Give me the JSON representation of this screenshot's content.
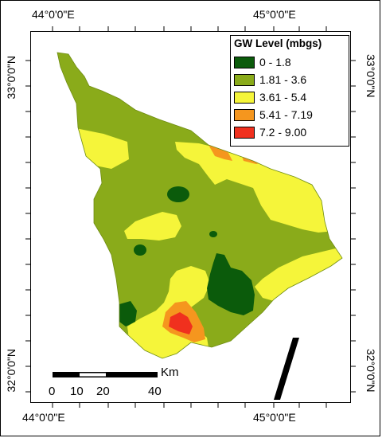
{
  "map": {
    "coords": {
      "top": [
        "44°0'0\"E",
        "45°0'0\"E"
      ],
      "bottom": [
        "44°0'0\"E",
        "45°0'0\"E"
      ],
      "left": [
        "33°0'0\"N",
        "32°0'0\"N"
      ],
      "right": [
        "33°0'0\"N",
        "32°0'0\"N"
      ]
    },
    "legend": {
      "title": "GW Level (mbgs)",
      "items": [
        {
          "label": "0 - 1.8",
          "color": "#0b5b0b"
        },
        {
          "label": "1.81 - 3.6",
          "color": "#8aab1a"
        },
        {
          "label": "3.61 - 5.4",
          "color": "#f5f53a"
        },
        {
          "label": "5.41 - 7.19",
          "color": "#f5961e"
        },
        {
          "label": "7.2 - 9.00",
          "color": "#f0301e"
        }
      ]
    },
    "scalebar": {
      "unit": "Km",
      "labels": [
        "0",
        "10",
        "20",
        "40"
      ]
    },
    "north_arrow": "north-arrow-icon"
  }
}
